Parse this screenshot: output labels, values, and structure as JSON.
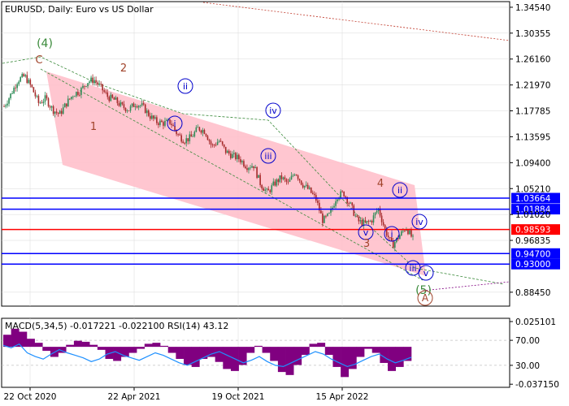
{
  "chart_data": [
    {
      "type": "candlestick",
      "title": "EURUSD, Daily:  Euro vs US Dollar",
      "x_tick_labels": [
        "22 Oct 2020",
        "22 Apr 2021",
        "19 Oct 2021",
        "15 Apr 2022"
      ],
      "ylim": [
        0.862,
        1.3545
      ],
      "y_tick_labels": [
        {
          "value": 1.3454,
          "label": "1.34540"
        },
        {
          "value": 1.30355,
          "label": "1.30355"
        },
        {
          "value": 1.2616,
          "label": "1.26160"
        },
        {
          "value": 1.2197,
          "label": "1.21970"
        },
        {
          "value": 1.17785,
          "label": "1.17785"
        },
        {
          "value": 1.13595,
          "label": "1.13595"
        },
        {
          "value": 1.094,
          "label": "1.09400"
        },
        {
          "value": 1.0521,
          "label": "1.05210"
        },
        {
          "value": 1.0102,
          "label": "1.01020"
        },
        {
          "value": 0.96835,
          "label": "0.96835"
        },
        {
          "value": 0.8845,
          "label": "0.88450"
        }
      ],
      "price_path": [
        1.185,
        1.205,
        1.228,
        1.234,
        1.215,
        1.19,
        1.198,
        1.18,
        1.172,
        1.19,
        1.205,
        1.21,
        1.225,
        1.228,
        1.215,
        1.2,
        1.195,
        1.185,
        1.18,
        1.19,
        1.185,
        1.17,
        1.16,
        1.158,
        1.16,
        1.14,
        1.13,
        1.135,
        1.15,
        1.145,
        1.12,
        1.13,
        1.112,
        1.105,
        1.1,
        1.088,
        1.09,
        1.06,
        1.045,
        1.06,
        1.07,
        1.06,
        1.08,
        1.06,
        1.05,
        1.035,
        1.0,
        1.01,
        1.04,
        1.045,
        1.025,
        1.0,
        0.995,
        1.0,
        1.02,
        0.985,
        0.96,
        0.975,
        0.99,
        0.97
      ],
      "price_lines": [
        {
          "value": 1.03664,
          "label": "1.03664",
          "color": "#0000ff"
        },
        {
          "value": 1.01884,
          "label": "1.01884",
          "color": "#0000ff"
        },
        {
          "value": 0.98593,
          "label": "0.98593",
          "color": "#ff0000"
        },
        {
          "value": 0.947,
          "label": "0.94700",
          "color": "#0000ff"
        },
        {
          "value": 0.93,
          "label": "0.93000",
          "color": "#0000ff"
        }
      ],
      "wave_labels": [
        "C",
        "(4)",
        "2",
        "1",
        "ii",
        "i",
        "iv",
        "iii",
        "4",
        "ii",
        "v",
        "3",
        "i",
        "iv",
        "iii",
        "v",
        "(5)",
        "A"
      ],
      "wave_label_colors": {
        "brown": "#a0432a",
        "green": "#3a8a3a",
        "blue": "#0000cc"
      },
      "colors": {
        "up_candle": "#2e8b57",
        "down_candle": "#a52a2a",
        "channel_fill": "#ffc0cb",
        "trend_dashed": "#c0392b",
        "wave_dashed": "#3a8a3a",
        "grid": "#d8d8d8"
      }
    },
    {
      "type": "indicator",
      "title": "MACD(5,34,5) -0.017221 -0.022100 RSI(14) 43.12",
      "macd_ylim": [
        -0.037,
        0.0251
      ],
      "y_tick_labels": [
        {
          "value": 0.0251,
          "label": "0.025101",
          "axis": "macd"
        },
        {
          "value": -0.03715,
          "label": "-0.037150",
          "axis": "macd"
        },
        {
          "value": 70,
          "label": "70.00",
          "axis": "rsi"
        },
        {
          "value": 30,
          "label": "30.00",
          "axis": "rsi"
        }
      ],
      "macd_histogram": [
        0.012,
        0.018,
        0.015,
        0.008,
        0.004,
        -0.004,
        -0.01,
        -0.006,
        0.002,
        0.006,
        0.005,
        0.002,
        -0.003,
        -0.012,
        -0.014,
        -0.01,
        -0.006,
        -0.002,
        0.003,
        0.004,
        0.001,
        -0.006,
        -0.012,
        -0.018,
        -0.02,
        -0.012,
        -0.01,
        -0.015,
        -0.022,
        -0.024,
        -0.018,
        -0.006,
        0.001,
        -0.006,
        -0.014,
        -0.025,
        -0.028,
        -0.018,
        -0.008,
        0.003,
        0.004,
        -0.008,
        -0.02,
        -0.03,
        -0.022,
        -0.01,
        -0.002,
        -0.006,
        -0.016,
        -0.024,
        -0.02,
        -0.014
      ],
      "rsi": [
        62,
        58,
        64,
        50,
        44,
        40,
        48,
        55,
        50,
        46,
        42,
        36,
        40,
        48,
        52,
        46,
        42,
        38,
        44,
        50,
        46,
        40,
        34,
        30,
        36,
        42,
        48,
        52,
        46,
        40,
        34,
        38,
        44,
        36,
        30,
        28,
        34,
        40,
        46,
        52,
        48,
        40,
        34,
        28,
        32,
        38,
        44,
        48,
        40,
        34,
        38,
        43
      ],
      "colors": {
        "macd_fill": "#800080",
        "rsi_line": "#1e90ff",
        "level_line": "#c0c0c0"
      }
    }
  ]
}
